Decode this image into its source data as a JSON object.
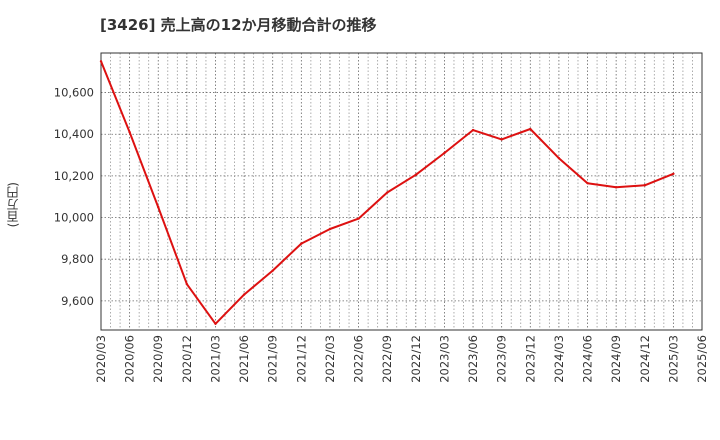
{
  "chart_data": {
    "type": "line",
    "title": "[3426]  売上高の12か月移動合計の推移",
    "ylabel": "(百万円)",
    "xlabel": "",
    "ylim": [
      9460,
      10790
    ],
    "yticks": [
      9600,
      9800,
      10000,
      10200,
      10400,
      10600
    ],
    "ytick_labels": [
      "9,600",
      "9,800",
      "10,000",
      "10,200",
      "10,400",
      "10,600"
    ],
    "x_tick_labels": [
      "2020/03",
      "2020/06",
      "2020/09",
      "2020/12",
      "2021/03",
      "2021/06",
      "2021/09",
      "2021/12",
      "2022/03",
      "2022/06",
      "2022/09",
      "2022/12",
      "2023/03",
      "2023/06",
      "2023/09",
      "2023/12",
      "2024/03",
      "2024/06",
      "2024/09",
      "2024/12",
      "2025/03",
      "2025/06"
    ],
    "grid": true,
    "series": [
      {
        "name": "売上高12か月移動合計",
        "color": "#dd1111",
        "x": [
          "2020/03",
          "2020/06",
          "2020/09",
          "2020/12",
          "2021/03",
          "2021/06",
          "2021/09",
          "2021/12",
          "2022/03",
          "2022/06",
          "2022/09",
          "2022/12",
          "2023/03",
          "2023/06",
          "2023/09",
          "2023/12",
          "2024/03",
          "2024/06",
          "2024/09",
          "2024/12",
          "2025/03"
        ],
        "values": [
          10750,
          10410,
          10050,
          9680,
          9490,
          9630,
          9745,
          9875,
          9945,
          9995,
          10120,
          10205,
          10310,
          10420,
          10375,
          10425,
          10285,
          10165,
          10145,
          10155,
          10210
        ]
      }
    ]
  }
}
